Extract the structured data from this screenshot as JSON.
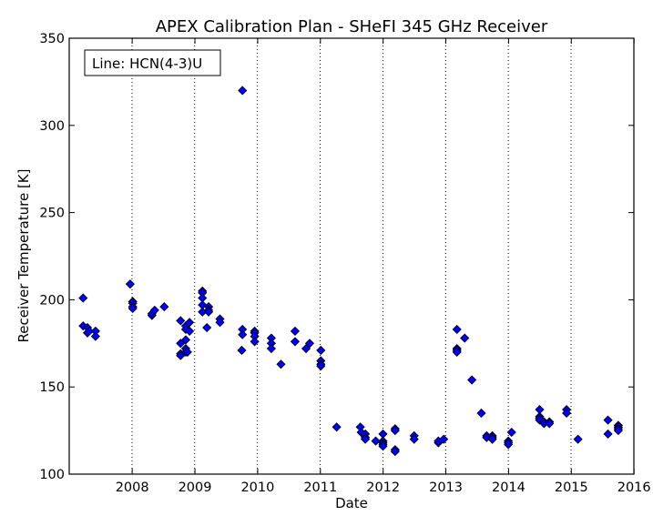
{
  "chart_data": {
    "type": "scatter",
    "title": "APEX Calibration Plan - SHeFI 345 GHz Receiver",
    "xlabel": "Date",
    "ylabel": "Receiver Temperature [K]",
    "legend_text": "Line: HCN(4-3)U",
    "legend_placement": "top-left",
    "marker_color": "#0000ff",
    "xlim": [
      "2007-07-01",
      "2016-07-01"
    ],
    "ylim": [
      100,
      350
    ],
    "x_ticks": [
      "2008",
      "2009",
      "2010",
      "2011",
      "2012",
      "2013",
      "2014",
      "2015",
      "2016"
    ],
    "y_ticks": [
      100,
      150,
      200,
      250,
      300,
      350
    ],
    "vertical_gridlines_dotted": [
      "2008-07-01",
      "2009-07-01",
      "2010-07-01",
      "2011-07-01",
      "2012-07-01",
      "2013-07-01",
      "2014-07-01",
      "2015-07-01"
    ],
    "points": [
      {
        "x": "2007-09-20",
        "y": 201
      },
      {
        "x": "2007-09-20",
        "y": 185
      },
      {
        "x": "2007-10-15",
        "y": 184
      },
      {
        "x": "2007-10-15",
        "y": 181
      },
      {
        "x": "2007-10-25",
        "y": 182
      },
      {
        "x": "2007-12-01",
        "y": 182
      },
      {
        "x": "2007-12-01",
        "y": 179
      },
      {
        "x": "2008-06-20",
        "y": 209
      },
      {
        "x": "2008-07-05",
        "y": 199
      },
      {
        "x": "2008-07-05",
        "y": 198
      },
      {
        "x": "2008-07-05",
        "y": 196
      },
      {
        "x": "2008-07-05",
        "y": 195
      },
      {
        "x": "2008-10-25",
        "y": 191
      },
      {
        "x": "2008-10-25",
        "y": 192
      },
      {
        "x": "2008-11-10",
        "y": 194
      },
      {
        "x": "2009-01-05",
        "y": 196
      },
      {
        "x": "2009-04-10",
        "y": 188
      },
      {
        "x": "2009-04-10",
        "y": 175
      },
      {
        "x": "2009-04-10",
        "y": 169
      },
      {
        "x": "2009-04-10",
        "y": 168
      },
      {
        "x": "2009-05-10",
        "y": 185
      },
      {
        "x": "2009-05-10",
        "y": 183
      },
      {
        "x": "2009-05-10",
        "y": 177
      },
      {
        "x": "2009-05-10",
        "y": 172
      },
      {
        "x": "2009-05-10",
        "y": 170
      },
      {
        "x": "2009-05-20",
        "y": 170
      },
      {
        "x": "2009-06-01",
        "y": 187
      },
      {
        "x": "2009-06-01",
        "y": 182
      },
      {
        "x": "2009-08-15",
        "y": 205
      },
      {
        "x": "2009-08-15",
        "y": 204
      },
      {
        "x": "2009-08-15",
        "y": 201
      },
      {
        "x": "2009-08-15",
        "y": 197
      },
      {
        "x": "2009-08-15",
        "y": 193
      },
      {
        "x": "2009-09-20",
        "y": 196
      },
      {
        "x": "2009-09-20",
        "y": 194
      },
      {
        "x": "2009-09-20",
        "y": 193
      },
      {
        "x": "2009-09-10",
        "y": 184
      },
      {
        "x": "2009-11-25",
        "y": 189
      },
      {
        "x": "2009-11-25",
        "y": 187
      },
      {
        "x": "2010-04-05",
        "y": 320
      },
      {
        "x": "2010-04-05",
        "y": 183
      },
      {
        "x": "2010-04-05",
        "y": 180
      },
      {
        "x": "2010-04-01",
        "y": 171
      },
      {
        "x": "2010-06-15",
        "y": 182
      },
      {
        "x": "2010-06-15",
        "y": 181
      },
      {
        "x": "2010-06-15",
        "y": 179
      },
      {
        "x": "2010-06-15",
        "y": 176
      },
      {
        "x": "2010-09-20",
        "y": 178
      },
      {
        "x": "2010-09-20",
        "y": 175
      },
      {
        "x": "2010-09-20",
        "y": 172
      },
      {
        "x": "2010-11-15",
        "y": 163
      },
      {
        "x": "2011-02-05",
        "y": 182
      },
      {
        "x": "2011-02-05",
        "y": 176
      },
      {
        "x": "2011-04-10",
        "y": 172
      },
      {
        "x": "2011-05-01",
        "y": 175
      },
      {
        "x": "2011-07-05",
        "y": 171
      },
      {
        "x": "2011-07-05",
        "y": 165
      },
      {
        "x": "2011-07-05",
        "y": 163
      },
      {
        "x": "2011-07-05",
        "y": 162
      },
      {
        "x": "2011-10-05",
        "y": 127
      },
      {
        "x": "2012-02-20",
        "y": 127
      },
      {
        "x": "2012-02-25",
        "y": 124
      },
      {
        "x": "2012-03-20",
        "y": 123
      },
      {
        "x": "2012-03-20",
        "y": 121
      },
      {
        "x": "2012-03-20",
        "y": 120
      },
      {
        "x": "2012-05-20",
        "y": 119
      },
      {
        "x": "2012-07-01",
        "y": 123
      },
      {
        "x": "2012-07-01",
        "y": 119
      },
      {
        "x": "2012-07-01",
        "y": 118
      },
      {
        "x": "2012-07-01",
        "y": 117
      },
      {
        "x": "2012-07-01",
        "y": 116
      },
      {
        "x": "2012-09-10",
        "y": 126
      },
      {
        "x": "2012-09-10",
        "y": 125
      },
      {
        "x": "2012-09-10",
        "y": 114
      },
      {
        "x": "2012-09-10",
        "y": 113
      },
      {
        "x": "2012-12-30",
        "y": 122
      },
      {
        "x": "2012-12-30",
        "y": 120
      },
      {
        "x": "2013-05-20",
        "y": 118
      },
      {
        "x": "2013-05-20",
        "y": 119
      },
      {
        "x": "2013-06-20",
        "y": 120
      },
      {
        "x": "2013-09-05",
        "y": 183
      },
      {
        "x": "2013-09-05",
        "y": 172
      },
      {
        "x": "2013-09-05",
        "y": 171
      },
      {
        "x": "2013-09-05",
        "y": 170
      },
      {
        "x": "2013-10-20",
        "y": 178
      },
      {
        "x": "2013-12-01",
        "y": 154
      },
      {
        "x": "2014-01-25",
        "y": 135
      },
      {
        "x": "2014-02-25",
        "y": 122
      },
      {
        "x": "2014-02-25",
        "y": 121
      },
      {
        "x": "2014-03-30",
        "y": 122
      },
      {
        "x": "2014-03-30",
        "y": 121
      },
      {
        "x": "2014-03-30",
        "y": 120
      },
      {
        "x": "2014-07-01",
        "y": 119
      },
      {
        "x": "2014-07-01",
        "y": 118
      },
      {
        "x": "2014-07-01",
        "y": 117
      },
      {
        "x": "2014-07-20",
        "y": 124
      },
      {
        "x": "2014-12-30",
        "y": 137
      },
      {
        "x": "2014-12-30",
        "y": 133
      },
      {
        "x": "2014-12-30",
        "y": 132
      },
      {
        "x": "2014-12-30",
        "y": 131
      },
      {
        "x": "2015-01-25",
        "y": 130
      },
      {
        "x": "2015-01-25",
        "y": 129
      },
      {
        "x": "2015-02-25",
        "y": 130
      },
      {
        "x": "2015-02-25",
        "y": 129
      },
      {
        "x": "2015-06-05",
        "y": 137
      },
      {
        "x": "2015-06-05",
        "y": 135
      },
      {
        "x": "2015-08-10",
        "y": 120
      },
      {
        "x": "2016-02-01",
        "y": 131
      },
      {
        "x": "2016-02-01",
        "y": 123
      },
      {
        "x": "2016-04-01",
        "y": 128
      },
      {
        "x": "2016-04-01",
        "y": 127
      },
      {
        "x": "2016-04-01",
        "y": 126
      },
      {
        "x": "2016-04-01",
        "y": 125
      }
    ]
  }
}
